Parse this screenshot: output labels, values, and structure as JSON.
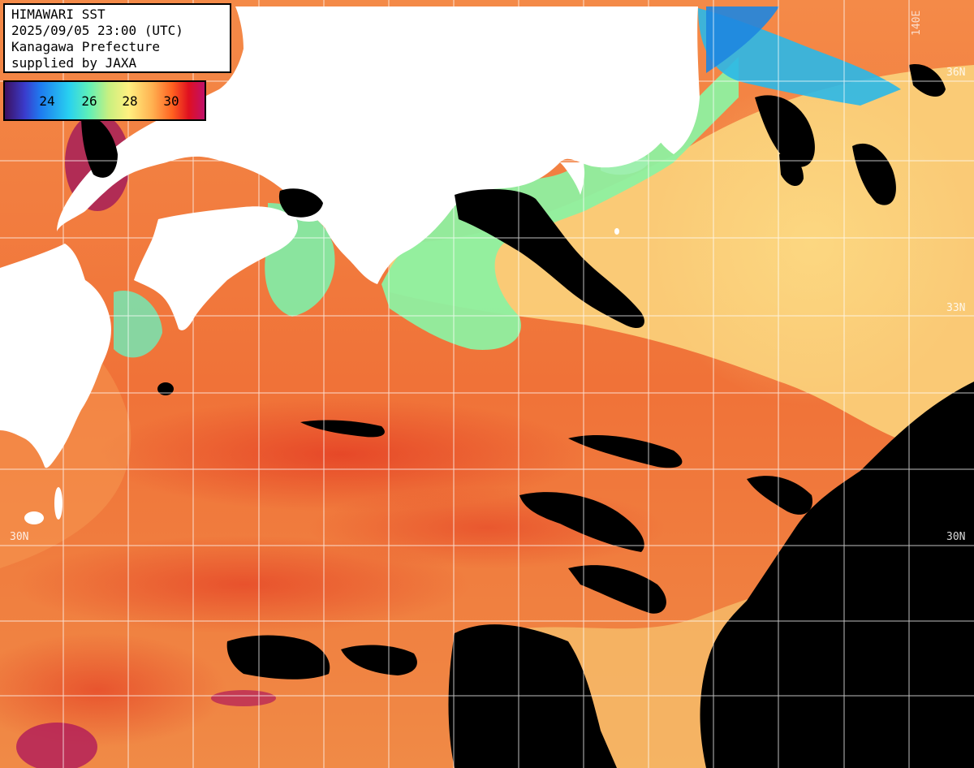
{
  "header": {
    "line1": "HIMAWARI SST",
    "line2": "2025/09/05 23:00 (UTC)",
    "line3": "Kanagawa Prefecture",
    "line4": "supplied by JAXA"
  },
  "legend": {
    "ticks": [
      "24",
      "26",
      "28",
      "30"
    ]
  },
  "grid": {
    "lat_labels": {
      "n36": "36N",
      "n33": "33N",
      "n30_left": "30N",
      "n30_right": "30N"
    },
    "lon_labels": {
      "e140": "140E"
    }
  },
  "colors": {
    "land": "#ffffff",
    "cloud": "#000000",
    "grid": "#ffffff",
    "warm_sea": "#f07a3c",
    "hot_sea": "#e8402a",
    "cool_sea": "#ffd77a",
    "cold_sea": "#6ef0b0"
  }
}
